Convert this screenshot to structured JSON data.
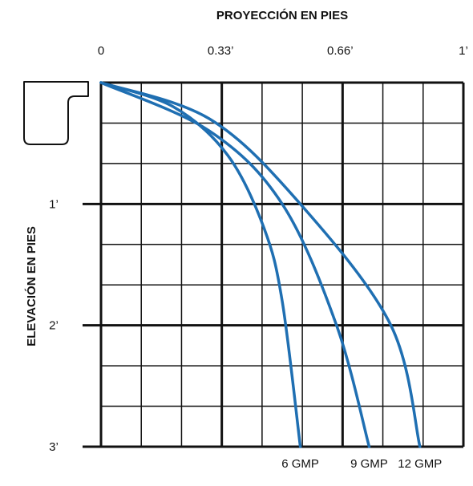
{
  "chart_data": {
    "type": "line",
    "title": "PROYECCIÓN EN PIES",
    "xlabel": "PROYECCIÓN EN PIES",
    "ylabel": "ELEVACIÓN EN PIES",
    "x_ticks": [
      {
        "value": 0,
        "label": "0"
      },
      {
        "value": 0.33,
        "label": "0.33’"
      },
      {
        "value": 0.66,
        "label": "0.66’"
      },
      {
        "value": 1,
        "label": "1’"
      }
    ],
    "y_ticks": [
      {
        "value": 1,
        "label": "1’"
      },
      {
        "value": 2,
        "label": "2’"
      },
      {
        "value": 3,
        "label": "3’"
      }
    ],
    "xlim": [
      0,
      1
    ],
    "ylim": [
      0,
      3
    ],
    "grid": true,
    "series": [
      {
        "name": "6 GMP",
        "x": [
          0,
          0.2,
          0.35,
          0.45,
          0.5,
          0.55
        ],
        "y": [
          0,
          0.2,
          0.6,
          1.2,
          1.8,
          3.0
        ]
      },
      {
        "name": "9 GMP",
        "x": [
          0,
          0.3,
          0.5,
          0.65,
          0.74
        ],
        "y": [
          0,
          0.4,
          1.0,
          2.0,
          3.0
        ]
      },
      {
        "name": "12 GMP",
        "x": [
          0,
          0.3,
          0.55,
          0.8,
          0.88
        ],
        "y": [
          0,
          0.3,
          1.0,
          2.0,
          3.0
        ]
      }
    ],
    "colors": {
      "line": "#1f6fb2",
      "grid": "#111111"
    }
  },
  "icons": {
    "gutter_profile": "gutter-profile-icon"
  }
}
